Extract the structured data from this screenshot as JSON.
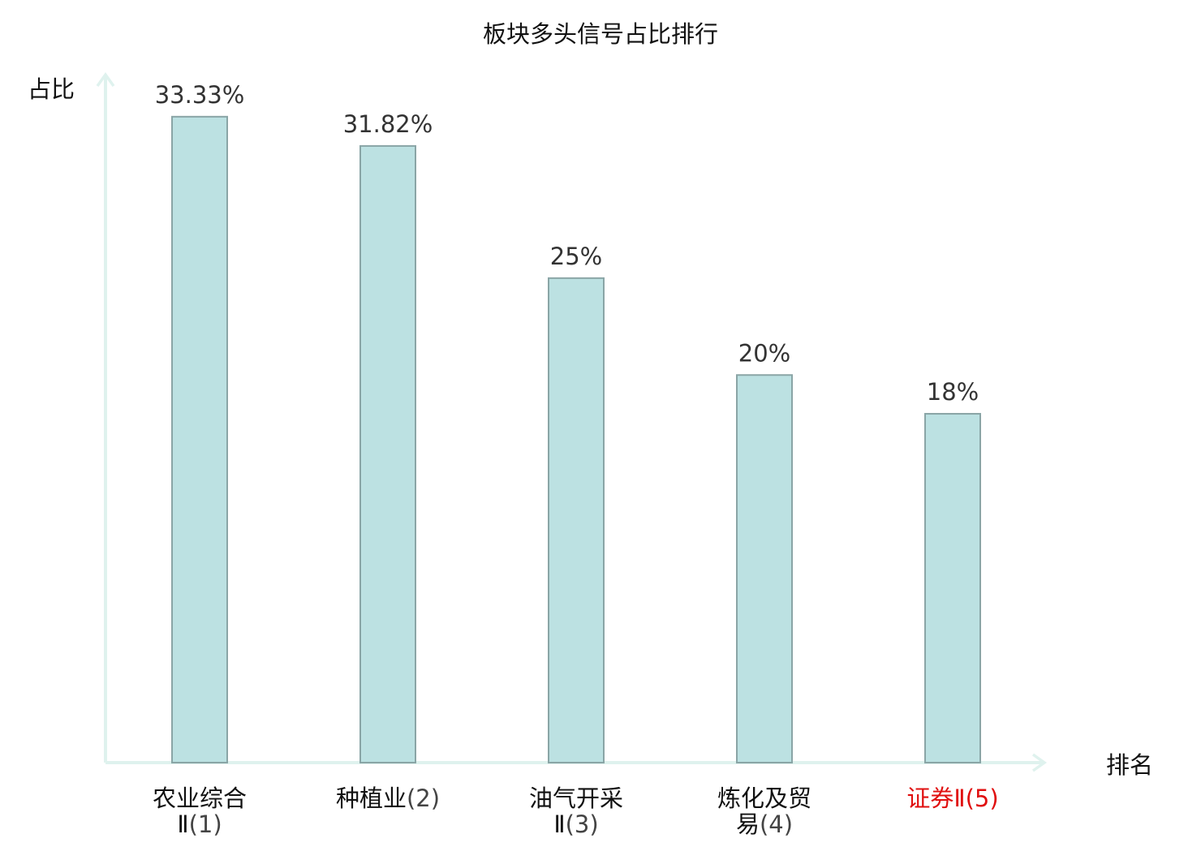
{
  "chart_data": {
    "type": "bar",
    "title": "板块多头信号占比排行",
    "ylabel": "占比",
    "xlabel": "排名",
    "ylim": [
      0,
      35.5
    ],
    "grid": false,
    "categories": [
      {
        "name_lines": [
          "农业综合",
          "Ⅱ"
        ],
        "rank": "(1)",
        "highlight": false
      },
      {
        "name_lines": [
          "种植业"
        ],
        "rank": "(2)",
        "highlight": false
      },
      {
        "name_lines": [
          "油气开采",
          "Ⅱ"
        ],
        "rank": "(3)",
        "highlight": false
      },
      {
        "name_lines": [
          "炼化及贸",
          "易"
        ],
        "rank": "(4)",
        "highlight": false
      },
      {
        "name_lines": [
          "证券Ⅱ"
        ],
        "rank": "(5)",
        "highlight": true
      }
    ],
    "values": [
      33.33,
      31.82,
      25,
      20,
      18
    ],
    "value_labels": [
      "33.33%",
      "31.82%",
      "25%",
      "20%",
      "18%"
    ],
    "colors": {
      "bar_fill": "#bce1e2",
      "bar_stroke": "#8aa5a6",
      "axis": "#dff2ee",
      "highlight_label": "#e01010"
    }
  }
}
